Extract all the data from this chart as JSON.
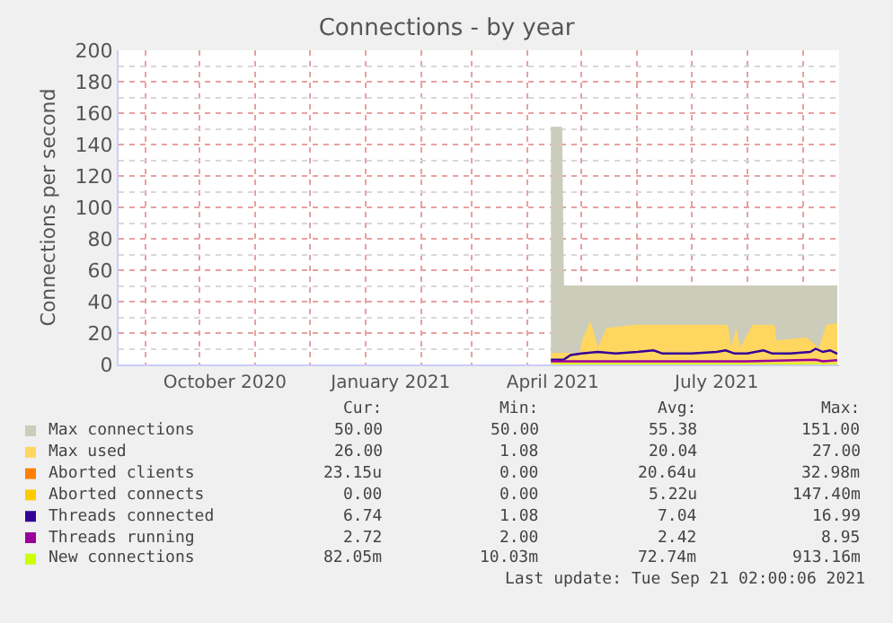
{
  "chart_data": {
    "type": "area",
    "title": "Connections - by year",
    "ylabel": "Connections per second",
    "xlim": [
      "2020-08-17",
      "2021-09-21"
    ],
    "xticks": [
      {
        "value": "2020-09-01",
        "label": null
      },
      {
        "value": "2020-10-01",
        "label": null
      },
      {
        "value": "2020-10-15",
        "label": "October 2020"
      },
      {
        "value": "2020-11-01",
        "label": null
      },
      {
        "value": "2020-12-01",
        "label": null
      },
      {
        "value": "2021-01-01",
        "label": null
      },
      {
        "value": "2021-01-15",
        "label": "January 2021"
      },
      {
        "value": "2021-02-01",
        "label": null
      },
      {
        "value": "2021-03-01",
        "label": null
      },
      {
        "value": "2021-04-01",
        "label": null
      },
      {
        "value": "2021-04-15",
        "label": "April 2021"
      },
      {
        "value": "2021-05-01",
        "label": null
      },
      {
        "value": "2021-06-01",
        "label": null
      },
      {
        "value": "2021-07-01",
        "label": null
      },
      {
        "value": "2021-07-15",
        "label": "July 2021"
      },
      {
        "value": "2021-08-01",
        "label": null
      },
      {
        "value": "2021-09-01",
        "label": null
      }
    ],
    "ylim": [
      0,
      200
    ],
    "yticks": [
      0,
      {
        "value": 10,
        "label": null
      },
      20,
      {
        "value": 30,
        "label": null
      },
      40,
      {
        "value": 50,
        "label": null
      },
      60,
      {
        "value": 70,
        "label": null
      },
      80,
      {
        "value": 90,
        "label": null
      },
      100,
      {
        "value": 110,
        "label": null
      },
      120,
      {
        "value": 130,
        "label": null
      },
      140,
      {
        "value": 150,
        "label": null
      },
      160,
      {
        "value": 170,
        "label": null
      },
      180,
      {
        "value": 190,
        "label": null
      },
      200
    ],
    "grid": true,
    "legend": "bottom",
    "series": [
      {
        "name": "Max connections",
        "color": "#ccccbb",
        "x": [
          "2021-04-14",
          "2021-04-20",
          "2021-04-21",
          "2021-09-20"
        ],
        "values": [
          151,
          151,
          50,
          50
        ]
      },
      {
        "name": "Max used",
        "color": "#ffd660",
        "x": [
          "2021-04-14",
          "2021-04-30",
          "2021-05-02",
          "2021-05-06",
          "2021-05-10",
          "2021-05-15",
          "2021-05-30",
          "2021-07-21",
          "2021-07-23",
          "2021-07-26",
          "2021-07-28",
          "2021-08-04",
          "2021-08-16",
          "2021-08-17",
          "2021-09-03",
          "2021-09-10",
          "2021-09-14",
          "2021-09-20"
        ],
        "values": [
          7,
          7,
          17,
          27,
          10,
          23,
          25,
          25,
          10,
          22,
          10,
          25,
          25,
          15,
          17,
          10,
          25,
          26
        ]
      },
      {
        "name": "Aborted clients",
        "type": "line",
        "color": "#ff8000"
      },
      {
        "name": "Aborted connects",
        "type": "line",
        "color": "#ffcc00"
      },
      {
        "name": "Threads connected",
        "type": "line",
        "color": "#330099",
        "x": [
          "2021-04-14",
          "2021-04-21",
          "2021-04-25",
          "2021-05-01",
          "2021-05-10",
          "2021-05-20",
          "2021-06-01",
          "2021-06-10",
          "2021-06-15",
          "2021-07-01",
          "2021-07-15",
          "2021-07-20",
          "2021-07-25",
          "2021-08-01",
          "2021-08-10",
          "2021-08-15",
          "2021-08-25",
          "2021-09-05",
          "2021-09-08",
          "2021-09-12",
          "2021-09-16",
          "2021-09-20"
        ],
        "values": [
          3,
          3,
          6,
          7,
          8,
          7,
          8,
          9,
          7,
          7,
          8,
          9,
          7,
          7,
          9,
          7,
          7,
          8,
          10,
          8,
          9,
          6.74
        ]
      },
      {
        "name": "Threads running",
        "type": "line",
        "color": "#990099",
        "x": [
          "2021-04-14",
          "2021-05-01",
          "2021-06-01",
          "2021-07-01",
          "2021-08-01",
          "2021-09-08",
          "2021-09-12",
          "2021-09-20"
        ],
        "values": [
          2,
          2,
          2,
          2,
          2,
          3,
          2,
          2.72
        ]
      },
      {
        "name": "New connections",
        "type": "line",
        "color": "#ccff00",
        "x": [
          "2021-04-14",
          "2021-09-20"
        ],
        "values": [
          0,
          0
        ]
      }
    ],
    "annotations": [
      "Cur:",
      "Min:",
      "Avg:",
      "Max:",
      "50.00",
      "50.00",
      "55.38",
      "151.00",
      "26.00",
      "1.08",
      "20.04",
      "27.00",
      "23.15u",
      "0.00",
      "20.64u",
      "32.98m",
      "0.00",
      "0.00",
      "5.22u",
      "147.40m",
      "6.74",
      "1.08",
      "7.04",
      "16.99",
      "2.72",
      "2.00",
      "2.42",
      "8.95",
      "82.05m",
      "10.03m",
      "72.74m",
      "913.16m",
      "Last update: Tue Sep 21 02:00:06 2021"
    ]
  }
}
